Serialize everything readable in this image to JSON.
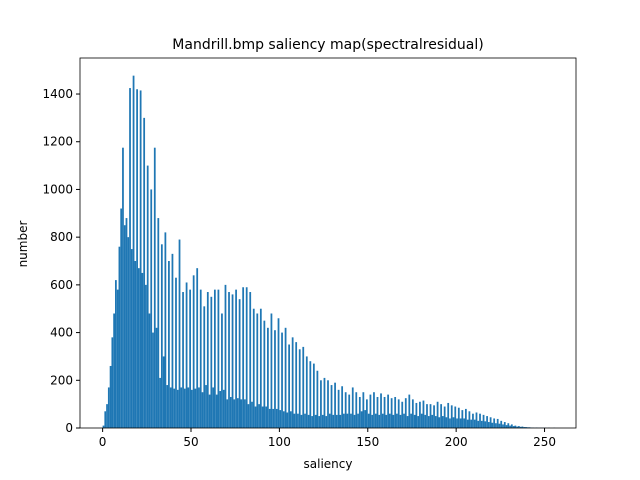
{
  "chart_data": {
    "type": "histogram",
    "title": "Mandrill.bmp saliency map(spectralresidual)",
    "xlabel": "saliency",
    "ylabel": "number",
    "color": "#1f77b4",
    "bins": [
      0,
      1,
      2,
      3,
      4,
      5,
      6,
      7,
      8,
      9,
      10,
      11,
      12,
      13,
      14,
      15,
      16,
      17,
      18,
      19,
      20,
      21,
      22,
      23,
      24,
      25,
      26,
      27,
      28,
      29,
      30,
      31,
      32,
      33,
      34,
      35,
      36,
      37,
      38,
      39,
      40,
      41,
      42,
      43,
      44,
      45,
      46,
      47,
      48,
      49,
      50,
      51,
      52,
      53,
      54,
      55,
      56,
      57,
      58,
      59,
      60,
      61,
      62,
      63,
      64,
      65,
      66,
      67,
      68,
      69,
      70,
      71,
      72,
      73,
      74,
      75,
      76,
      77,
      78,
      79,
      80,
      81,
      82,
      83,
      84,
      85,
      86,
      87,
      88,
      89,
      90,
      91,
      92,
      93,
      94,
      95,
      96,
      97,
      98,
      99,
      100,
      101,
      102,
      103,
      104,
      105,
      106,
      107,
      108,
      109,
      110,
      111,
      112,
      113,
      114,
      115,
      116,
      117,
      118,
      119,
      120,
      121,
      122,
      123,
      124,
      125,
      126,
      127,
      128,
      129,
      130,
      131,
      132,
      133,
      134,
      135,
      136,
      137,
      138,
      139,
      140,
      141,
      142,
      143,
      144,
      145,
      146,
      147,
      148,
      149,
      150,
      151,
      152,
      153,
      154,
      155,
      156,
      157,
      158,
      159,
      160,
      161,
      162,
      163,
      164,
      165,
      166,
      167,
      168,
      169,
      170,
      171,
      172,
      173,
      174,
      175,
      176,
      177,
      178,
      179,
      180,
      181,
      182,
      183,
      184,
      185,
      186,
      187,
      188,
      189,
      190,
      191,
      192,
      193,
      194,
      195,
      196,
      197,
      198,
      199,
      200,
      201,
      202,
      203,
      204,
      205,
      206,
      207,
      208,
      209,
      210,
      211,
      212,
      213,
      214,
      215,
      216,
      217,
      218,
      219,
      220,
      221,
      222,
      223,
      224,
      225,
      226,
      227,
      228,
      229,
      230,
      231,
      232,
      233,
      234,
      235,
      236,
      237,
      238,
      239,
      240,
      241,
      242,
      243,
      244,
      245,
      246,
      247,
      248,
      249,
      250,
      251,
      252,
      253,
      254,
      255,
      256
    ],
    "counts": [
      10,
      70,
      100,
      170,
      260,
      380,
      480,
      620,
      580,
      760,
      920,
      1175,
      850,
      880,
      800,
      1425,
      750,
      1477,
      700,
      1420,
      670,
      1415,
      650,
      1300,
      600,
      1100,
      480,
      1000,
      400,
      1175,
      420,
      880,
      210,
      770,
      300,
      820,
      180,
      700,
      170,
      730,
      165,
      630,
      160,
      790,
      170,
      570,
      165,
      610,
      170,
      580,
      160,
      640,
      165,
      670,
      170,
      580,
      150,
      510,
      180,
      570,
      140,
      550,
      170,
      580,
      140,
      580,
      155,
      480,
      160,
      600,
      120,
      570,
      130,
      560,
      120,
      580,
      125,
      540,
      120,
      590,
      120,
      590,
      100,
      570,
      110,
      500,
      90,
      480,
      100,
      500,
      90,
      450,
      90,
      420,
      80,
      480,
      80,
      410,
      80,
      460,
      75,
      400,
      70,
      420,
      65,
      350,
      70,
      380,
      60,
      360,
      60,
      330,
      55,
      340,
      60,
      300,
      55,
      280,
      50,
      270,
      55,
      240,
      50,
      200,
      55,
      210,
      50,
      200,
      60,
      180,
      55,
      190,
      55,
      160,
      55,
      175,
      60,
      150,
      60,
      140,
      60,
      170,
      55,
      150,
      60,
      130,
      70,
      150,
      75,
      120,
      60,
      140,
      55,
      150,
      60,
      130,
      55,
      145,
      60,
      130,
      55,
      140,
      60,
      125,
      55,
      130,
      60,
      120,
      55,
      110,
      60,
      125,
      50,
      140,
      60,
      120,
      55,
      105,
      50,
      110,
      60,
      115,
      55,
      100,
      50,
      100,
      55,
      95,
      50,
      110,
      45,
      100,
      50,
      90,
      45,
      105,
      40,
      95,
      45,
      90,
      40,
      85,
      40,
      75,
      40,
      80,
      35,
      70,
      35,
      60,
      35,
      65,
      30,
      60,
      30,
      55,
      28,
      50,
      25,
      45,
      22,
      40,
      20,
      38,
      18,
      30,
      15,
      25,
      12,
      20,
      10,
      15,
      8,
      10,
      6,
      8,
      5,
      6,
      4,
      4,
      3,
      3,
      2,
      2,
      1,
      2,
      1,
      1,
      1,
      1,
      1,
      0,
      1,
      0,
      0,
      1
    ],
    "xlim": [
      -12.8,
      267.8
    ],
    "xticks": [
      0,
      50,
      100,
      150,
      200,
      250
    ],
    "ylim": [
      0,
      1551
    ],
    "yticks": [
      0,
      200,
      400,
      600,
      800,
      1000,
      1200,
      1400
    ]
  }
}
